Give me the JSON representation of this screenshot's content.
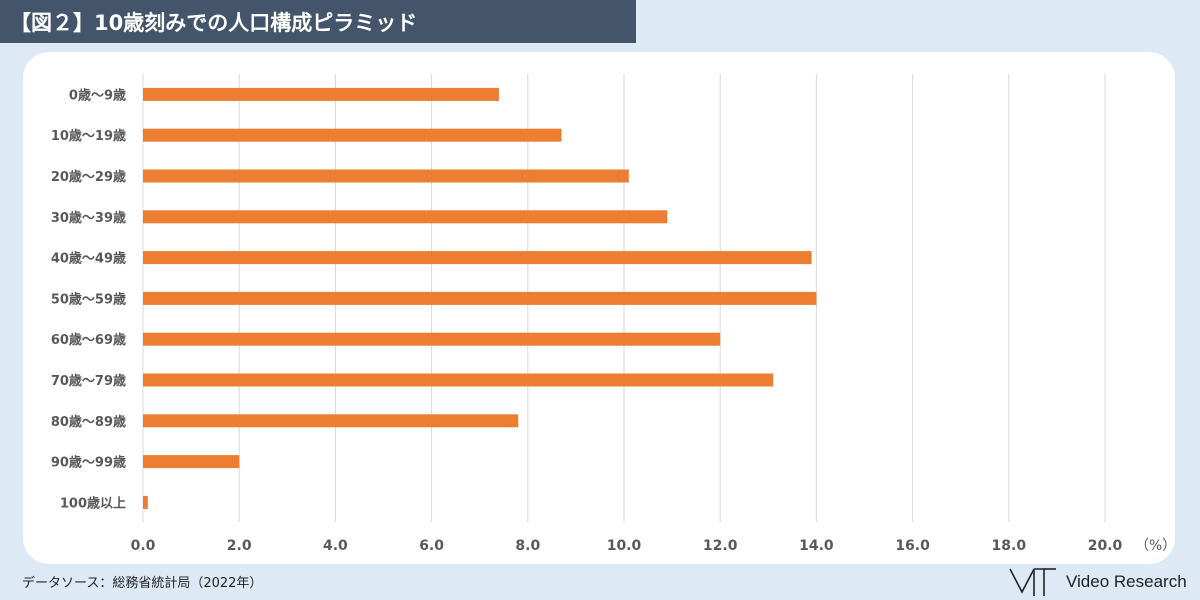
{
  "header": {
    "title": "【図２】10歳刻みでの人口構成ピラミッド"
  },
  "footer": {
    "source": "データソース：総務省統計局（2022年）",
    "brand": "Video Research"
  },
  "colors": {
    "bar": "#ed7d31",
    "grid": "#d9d9d9",
    "label": "#595959",
    "header_bg": "#44546a"
  },
  "chart_data": {
    "type": "bar",
    "orientation": "horizontal",
    "categories": [
      "0歳～9歳",
      "10歳～19歳",
      "20歳～29歳",
      "30歳～39歳",
      "40歳～49歳",
      "50歳～59歳",
      "60歳～69歳",
      "70歳～79歳",
      "80歳～89歳",
      "90歳～99歳",
      "100歳以上"
    ],
    "values": [
      7.4,
      8.7,
      10.1,
      10.9,
      13.9,
      14.0,
      12.0,
      13.1,
      7.8,
      2.0,
      0.1
    ],
    "xlim": [
      0,
      20
    ],
    "xticks": [
      0,
      2,
      4,
      6,
      8,
      10,
      12,
      14,
      16,
      18,
      20
    ],
    "tick_labels": [
      "0.0",
      "2.0",
      "4.0",
      "6.0",
      "8.0",
      "10.0",
      "12.0",
      "14.0",
      "16.0",
      "18.0",
      "20.0"
    ],
    "unit_label": "（%）",
    "grid": true
  }
}
